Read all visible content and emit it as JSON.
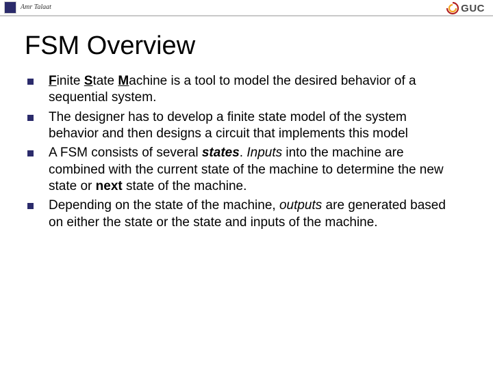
{
  "header": {
    "author": "Amr Talaat",
    "logo_text": "GUC",
    "accent_color": "#2b2b6b",
    "logo_colors": {
      "red": "#b22222",
      "yellow": "#f5a623"
    }
  },
  "slide": {
    "title": "FSM Overview",
    "title_fontsize": 38,
    "body_fontsize": 19,
    "bullet_color": "#2b2b6b",
    "bullets": [
      {
        "runs": [
          {
            "t": "F",
            "u": true,
            "b": true
          },
          {
            "t": "inite "
          },
          {
            "t": "S",
            "u": true,
            "b": true
          },
          {
            "t": "tate "
          },
          {
            "t": "M",
            "u": true,
            "b": true
          },
          {
            "t": "achine is a tool to model the desired behavior of a sequential system."
          }
        ]
      },
      {
        "runs": [
          {
            "t": "The designer has to develop a finite state model of the system behavior and then designs a circuit that implements this model"
          }
        ]
      },
      {
        "runs": [
          {
            "t": "A FSM consists of several "
          },
          {
            "t": "states",
            "b": true,
            "i": true
          },
          {
            "t": ". "
          },
          {
            "t": "Inputs",
            "i": true
          },
          {
            "t": " into the machine are combined with the current state of the machine to determine the new state or "
          },
          {
            "t": "next",
            "b": true
          },
          {
            "t": " state of the machine."
          }
        ]
      },
      {
        "runs": [
          {
            "t": "Depending on the state of the machine, "
          },
          {
            "t": "outputs",
            "i": true
          },
          {
            "t": " are generated based on either the state or the state and inputs of the machine."
          }
        ]
      }
    ]
  }
}
